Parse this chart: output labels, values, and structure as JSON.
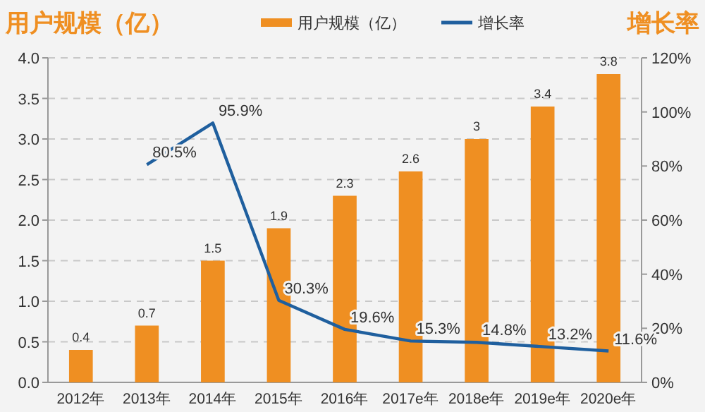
{
  "chart_data": {
    "type": "bar",
    "ylabel": "用户规模（亿）",
    "y2label": "增长率",
    "categories": [
      "2012年",
      "2013年",
      "2014年",
      "2015年",
      "2016年",
      "2017e年",
      "2018e年",
      "2019e年",
      "2020e年"
    ],
    "series": [
      {
        "name": "用户规模（亿）",
        "color": "#ef8f22",
        "values": [
          0.4,
          0.7,
          1.5,
          1.9,
          2.3,
          2.6,
          3,
          3.4,
          3.8
        ],
        "value_labels": [
          "0.4",
          "0.7",
          "1.5",
          "1.9",
          "2.3",
          "2.6",
          "3",
          "3.4",
          "3.8"
        ]
      },
      {
        "name": "增长率",
        "type": "line",
        "axis": "y2",
        "color": "#1f5f9e",
        "values": [
          null,
          80.5,
          95.9,
          30.3,
          19.6,
          15.3,
          14.8,
          13.2,
          11.6
        ],
        "value_labels": [
          null,
          "80.5%",
          "95.9%",
          "30.3%",
          "19.6%",
          "15.3%",
          "14.8%",
          "13.2%",
          "11.6%"
        ]
      }
    ],
    "ylim": [
      0,
      4
    ],
    "yticks": [
      {
        "value": 0,
        "label": "0.0"
      },
      {
        "value": 0.5,
        "label": "0.5"
      },
      {
        "value": 1,
        "label": "1.0"
      },
      {
        "value": 1.5,
        "label": "1.5"
      },
      {
        "value": 2,
        "label": "2.0"
      },
      {
        "value": 2.5,
        "label": "2.5"
      },
      {
        "value": 3,
        "label": "3.0"
      },
      {
        "value": 3.5,
        "label": "3.5"
      },
      {
        "value": 4,
        "label": "4.0"
      }
    ],
    "y2lim": [
      0,
      120
    ],
    "y2ticks": [
      {
        "value": 0,
        "label": "0%"
      },
      {
        "value": 20,
        "label": "20%"
      },
      {
        "value": 40,
        "label": "40%"
      },
      {
        "value": 60,
        "label": "60%"
      },
      {
        "value": 80,
        "label": "80%"
      },
      {
        "value": 100,
        "label": "100%"
      },
      {
        "value": 120,
        "label": "120%"
      }
    ],
    "grid": "y",
    "legend": "top",
    "marker": "none",
    "line_style": "solid"
  }
}
